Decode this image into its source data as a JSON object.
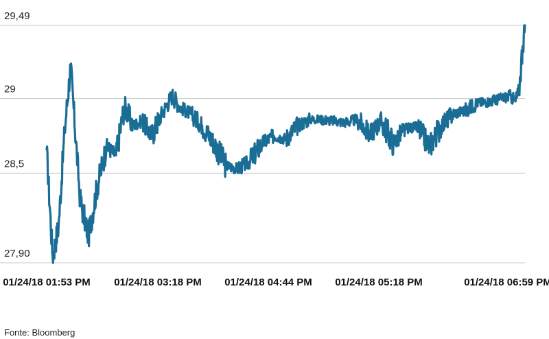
{
  "chart_data": {
    "type": "line",
    "title": "",
    "xlabel": "",
    "ylabel": "",
    "ylim": [
      27.9,
      29.49
    ],
    "yticks": [
      {
        "value": 29.49,
        "label": "29,49"
      },
      {
        "value": 29.0,
        "label": "29"
      },
      {
        "value": 28.5,
        "label": "28,5"
      },
      {
        "value": 27.9,
        "label": "27,90"
      }
    ],
    "xticks": [
      "01/24/18 01:53 PM",
      "01/24/18 03:18 PM",
      "01/24/18 04:44 PM",
      "01/24/18 05:18 PM",
      "01/24/18 06:59 PM"
    ],
    "grid": true,
    "legend": "none",
    "color": "#1a6d94",
    "series": [
      {
        "x_index": [
          0,
          0.05,
          0.1,
          0.15,
          0.2,
          0.28,
          0.35,
          0.42,
          0.5,
          0.58,
          0.65,
          0.72,
          0.8,
          0.88,
          0.95,
          1.0,
          1.05,
          1.12,
          1.2,
          1.3,
          1.4,
          1.5,
          1.6,
          1.7,
          1.8,
          1.9,
          2.0,
          2.1,
          2.2,
          2.3,
          2.4,
          2.5,
          2.6,
          2.7,
          2.8,
          2.9,
          3.0,
          3.1,
          3.2,
          3.3,
          3.4,
          3.5,
          3.6,
          3.7,
          3.8,
          3.88,
          3.92,
          3.95,
          3.98,
          4.0
        ],
        "values": [
          28.66,
          27.94,
          28.15,
          28.78,
          29.22,
          28.32,
          28.08,
          28.4,
          28.68,
          28.62,
          28.95,
          28.82,
          28.85,
          28.75,
          28.88,
          28.95,
          29.02,
          28.94,
          28.9,
          28.82,
          28.7,
          28.55,
          28.53,
          28.58,
          28.7,
          28.75,
          28.73,
          28.82,
          28.86,
          28.86,
          28.85,
          28.84,
          28.86,
          28.76,
          28.85,
          28.7,
          28.8,
          28.81,
          28.68,
          28.82,
          28.9,
          28.92,
          28.97,
          28.98,
          29.0,
          29.02,
          28.98,
          29.05,
          29.35,
          29.49
        ]
      }
    ]
  },
  "source": "Fonte: Bloomberg"
}
